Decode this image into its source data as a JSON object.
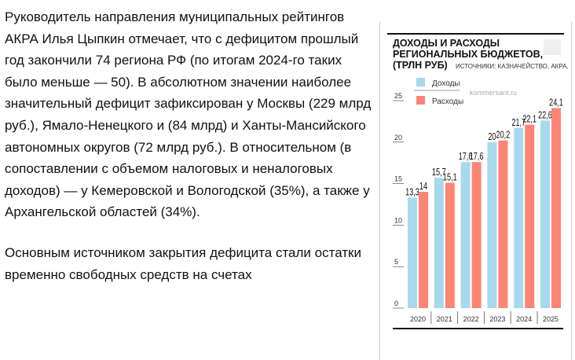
{
  "article": {
    "paragraphs": [
      "Руководитель направления муниципальных рейтингов АКРА Илья Цыпкин отмечает, что с дефицитом прошлый год закончили 74 региона РФ (по итогам 2024-го таких было меньше — 50). В абсолютном значении наиболее значительный дефицит зафиксирован у Москвы (229 млрд руб.), Ямало-Ненецкого и (84 млрд) и Ханты-Мансийского автономных округов (72 млрд руб.). В относительном (в сопоставлении с объемом налоговых и неналоговых доходов) — у Кемеровской и Вологодской (35%), а также у Архангельской областей (34%).",
      "Основным источником закрытия дефицита стали остатки временно свободных средств на счетах"
    ]
  },
  "chart_data": {
    "type": "bar",
    "title_lines": [
      "ДОХОДЫ И РАСХОДЫ",
      "РЕГИОНАЛЬНЫХ БЮДЖЕТОВ,",
      "(ТРЛН РУБ)"
    ],
    "source": "ИСТОЧНИКИ: КАЗНАЧЕЙСТВО, АКРА.",
    "watermark": "kommersant.ru",
    "categories": [
      "2020",
      "2021",
      "2022",
      "2023",
      "2024",
      "2025"
    ],
    "series": [
      {
        "name": "Доходы",
        "color": "#a8d8ec",
        "values": [
          13.3,
          15.7,
          17.6,
          20,
          21.7,
          22.6
        ],
        "labels": [
          "13,3",
          "15,7",
          "17,6",
          "20",
          "21,7",
          "22,6"
        ]
      },
      {
        "name": "Расходы",
        "color": "#fd8576",
        "values": [
          14,
          15.1,
          17.6,
          20.2,
          22.1,
          24.1
        ],
        "labels": [
          "14",
          "15,1",
          "17,6",
          "20,2",
          "22,1",
          "24,1"
        ]
      }
    ],
    "yticks": [
      "0",
      "5",
      "10",
      "15",
      "20",
      "25"
    ],
    "ylim": [
      0,
      25
    ],
    "legend": "top-left"
  }
}
